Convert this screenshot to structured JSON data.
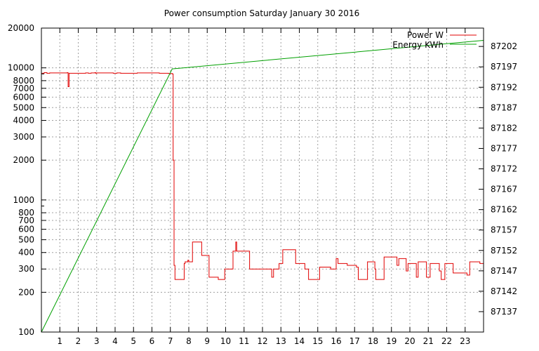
{
  "chart_data": {
    "type": "line",
    "title": "Power consumption Saturday January 30 2016",
    "xlabel": "",
    "ylabel": "",
    "x_ticks": [
      1,
      2,
      3,
      4,
      5,
      6,
      7,
      8,
      9,
      10,
      11,
      12,
      13,
      14,
      15,
      16,
      17,
      18,
      19,
      20,
      21,
      22,
      23
    ],
    "xlim": [
      0,
      24
    ],
    "y_left": {
      "scale": "log",
      "ylim": [
        100,
        20000
      ],
      "ticks": [
        100,
        200,
        300,
        400,
        500,
        600,
        700,
        800,
        1000,
        2000,
        3000,
        4000,
        5000,
        6000,
        7000,
        8000,
        10000,
        20000
      ],
      "tick_labels": [
        "100",
        "200",
        "300",
        "400",
        "500",
        "600",
        "700",
        "800",
        "1000",
        "2000",
        "3000",
        "4000",
        "5000",
        "6000",
        "7000",
        "8000",
        "10000",
        "20000"
      ]
    },
    "y_right": {
      "scale": "linear",
      "ylim": [
        87132,
        87206.5
      ],
      "ticks": [
        87137,
        87142,
        87147,
        87152,
        87157,
        87162,
        87167,
        87172,
        87177,
        87182,
        87187,
        87192,
        87197,
        87202
      ],
      "tick_labels": [
        "87137",
        "87142",
        "87147",
        "87152",
        "87157",
        "87162",
        "87167",
        "87172",
        "87177",
        "87182",
        "87187",
        "87192",
        "87197",
        "87202"
      ]
    },
    "grid": true,
    "legend_position": "top-right",
    "series": [
      {
        "name": "Power W",
        "axis": "left",
        "color": "#e00000",
        "x": [
          0,
          0.15,
          0.3,
          0.45,
          1.4,
          1.45,
          1.5,
          1.7,
          2.4,
          2.55,
          2.7,
          2.9,
          2.95,
          3.0,
          3.9,
          4.1,
          4.3,
          4.6,
          5.2,
          6.0,
          6.4,
          6.9,
          7.1,
          7.15,
          7.2,
          7.25,
          7.6,
          7.75,
          7.8,
          7.95,
          8.0,
          8.2,
          8.6,
          8.7,
          9.1,
          9.2,
          9.6,
          9.9,
          9.95,
          10.35,
          10.4,
          10.55,
          10.6,
          11.2,
          11.3,
          12.3,
          12.5,
          12.6,
          12.9,
          13.0,
          13.1,
          13.7,
          13.8,
          13.9,
          14.3,
          14.5,
          15.0,
          15.1,
          15.6,
          15.7,
          16.0,
          16.1,
          16.5,
          16.6,
          17.1,
          17.2,
          17.65,
          17.7,
          18.1,
          18.15,
          18.6,
          18.7,
          19.3,
          19.4,
          19.8,
          19.9,
          20.35,
          20.45,
          20.9,
          21.1,
          21.6,
          21.7,
          21.85,
          21.9,
          22.25,
          22.35,
          22.95,
          23.1,
          23.25,
          23.5,
          23.8,
          24.0
        ],
        "values": [
          9100,
          9200,
          9100,
          9150,
          9200,
          7200,
          9100,
          9100,
          9150,
          9100,
          9150,
          9200,
          9100,
          9150,
          9100,
          9150,
          9100,
          9100,
          9150,
          9150,
          9100,
          9050,
          9000,
          2000,
          320,
          250,
          250,
          330,
          340,
          350,
          340,
          480,
          480,
          380,
          260,
          260,
          250,
          250,
          300,
          300,
          410,
          480,
          410,
          410,
          300,
          300,
          260,
          300,
          330,
          330,
          420,
          420,
          330,
          330,
          300,
          250,
          250,
          310,
          310,
          300,
          360,
          330,
          330,
          320,
          310,
          250,
          250,
          340,
          300,
          250,
          370,
          370,
          320,
          360,
          290,
          330,
          260,
          340,
          260,
          330,
          290,
          250,
          250,
          330,
          330,
          280,
          280,
          270,
          340,
          340,
          330,
          330
        ]
      },
      {
        "name": "Energy KWh",
        "axis": "right",
        "color": "#00a000",
        "x": [
          0,
          7.1,
          24
        ],
        "values": [
          87132,
          87196.5,
          87203.5
        ]
      }
    ]
  }
}
